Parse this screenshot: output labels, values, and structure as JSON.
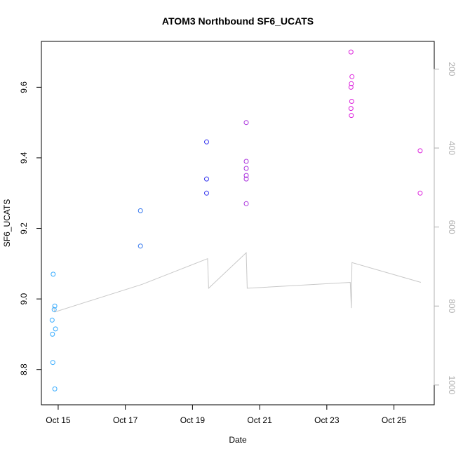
{
  "chart_data": {
    "type": "scatter",
    "title": "ATOM3 Northbound SF6_UCATS",
    "xlabel": "Date",
    "ylabel": "SF6_UCATS",
    "x_ticks": [
      "Oct 15",
      "Oct 17",
      "Oct 19",
      "Oct 21",
      "Oct 23",
      "Oct 25"
    ],
    "x_tick_days": [
      15,
      17,
      19,
      21,
      23,
      25
    ],
    "xlim": [
      14.5,
      26.2
    ],
    "ylim": [
      8.7,
      9.73
    ],
    "y_ticks": [
      8.8,
      9.0,
      9.2,
      9.4,
      9.6
    ],
    "y_tick_labels": [
      "8.8",
      "9.0",
      "9.2",
      "9.4",
      "9.6"
    ],
    "right_axis": {
      "reversed": true,
      "lim": [
        130,
        1050
      ],
      "ticks": [
        200,
        400,
        600,
        800,
        1000
      ],
      "tick_labels": [
        "200",
        "400",
        "600",
        "800",
        "1000"
      ],
      "color": "#b0b0b0"
    },
    "grid": false,
    "legend": "none",
    "points": [
      {
        "x": 14.85,
        "y": 9.07,
        "color": "#33aaff"
      },
      {
        "x": 14.9,
        "y": 8.98,
        "color": "#33aaff"
      },
      {
        "x": 14.88,
        "y": 8.97,
        "color": "#33aaff"
      },
      {
        "x": 14.82,
        "y": 8.94,
        "color": "#33aaff"
      },
      {
        "x": 14.92,
        "y": 8.915,
        "color": "#33aaff"
      },
      {
        "x": 14.83,
        "y": 8.9,
        "color": "#33aaff"
      },
      {
        "x": 14.84,
        "y": 8.82,
        "color": "#33aaff"
      },
      {
        "x": 14.9,
        "y": 8.745,
        "color": "#33aaff"
      },
      {
        "x": 17.45,
        "y": 9.25,
        "color": "#3377ee"
      },
      {
        "x": 17.45,
        "y": 9.15,
        "color": "#3377ee"
      },
      {
        "x": 19.42,
        "y": 9.445,
        "color": "#3333ee"
      },
      {
        "x": 19.42,
        "y": 9.34,
        "color": "#3333ee"
      },
      {
        "x": 19.42,
        "y": 9.3,
        "color": "#3333ee"
      },
      {
        "x": 20.6,
        "y": 9.5,
        "color": "#aa33dd"
      },
      {
        "x": 20.6,
        "y": 9.39,
        "color": "#aa33dd"
      },
      {
        "x": 20.6,
        "y": 9.37,
        "color": "#aa33dd"
      },
      {
        "x": 20.6,
        "y": 9.35,
        "color": "#aa33dd"
      },
      {
        "x": 20.6,
        "y": 9.34,
        "color": "#aa33dd"
      },
      {
        "x": 20.6,
        "y": 9.27,
        "color": "#aa33dd"
      },
      {
        "x": 23.72,
        "y": 9.7,
        "color": "#dd22dd"
      },
      {
        "x": 23.75,
        "y": 9.63,
        "color": "#dd22dd"
      },
      {
        "x": 23.73,
        "y": 9.61,
        "color": "#dd22dd"
      },
      {
        "x": 23.72,
        "y": 9.6,
        "color": "#dd22dd"
      },
      {
        "x": 23.74,
        "y": 9.56,
        "color": "#dd22dd"
      },
      {
        "x": 23.72,
        "y": 9.54,
        "color": "#dd22dd"
      },
      {
        "x": 23.73,
        "y": 9.52,
        "color": "#dd22dd"
      },
      {
        "x": 25.78,
        "y": 9.42,
        "color": "#dd22dd"
      },
      {
        "x": 25.78,
        "y": 9.3,
        "color": "#dd22dd"
      }
    ],
    "pressure_line": {
      "color": "#c8c8c8",
      "x": [
        14.85,
        14.9,
        17.5,
        19.45,
        19.48,
        20.6,
        20.63,
        23.7,
        23.73,
        23.75,
        25.8
      ],
      "y": [
        800,
        815,
        745,
        680,
        755,
        665,
        755,
        740,
        805,
        690,
        740
      ]
    }
  }
}
